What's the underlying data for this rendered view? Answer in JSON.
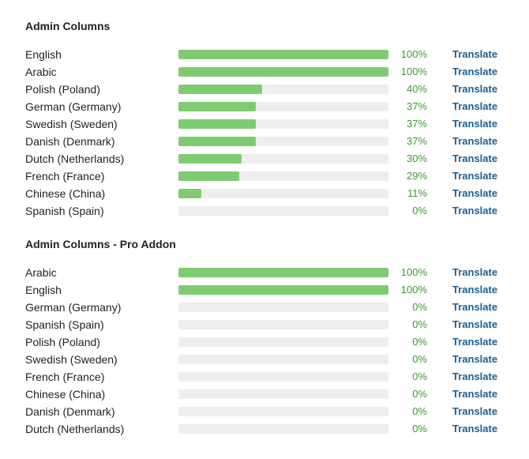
{
  "sections": [
    {
      "title": "Admin Columns",
      "rows": [
        {
          "language": "English",
          "percent": 100,
          "percent_label": "100%",
          "action": "Translate"
        },
        {
          "language": "Arabic",
          "percent": 100,
          "percent_label": "100%",
          "action": "Translate"
        },
        {
          "language": "Polish (Poland)",
          "percent": 40,
          "percent_label": "40%",
          "action": "Translate"
        },
        {
          "language": "German (Germany)",
          "percent": 37,
          "percent_label": "37%",
          "action": "Translate"
        },
        {
          "language": "Swedish (Sweden)",
          "percent": 37,
          "percent_label": "37%",
          "action": "Translate"
        },
        {
          "language": "Danish (Denmark)",
          "percent": 37,
          "percent_label": "37%",
          "action": "Translate"
        },
        {
          "language": "Dutch (Netherlands)",
          "percent": 30,
          "percent_label": "30%",
          "action": "Translate"
        },
        {
          "language": "French (France)",
          "percent": 29,
          "percent_label": "29%",
          "action": "Translate"
        },
        {
          "language": "Chinese (China)",
          "percent": 11,
          "percent_label": "11%",
          "action": "Translate"
        },
        {
          "language": "Spanish (Spain)",
          "percent": 0,
          "percent_label": "0%",
          "action": "Translate"
        }
      ]
    },
    {
      "title": "Admin Columns - Pro Addon",
      "rows": [
        {
          "language": "Arabic",
          "percent": 100,
          "percent_label": "100%",
          "action": "Translate"
        },
        {
          "language": "English",
          "percent": 100,
          "percent_label": "100%",
          "action": "Translate"
        },
        {
          "language": "German (Germany)",
          "percent": 0,
          "percent_label": "0%",
          "action": "Translate"
        },
        {
          "language": "Spanish (Spain)",
          "percent": 0,
          "percent_label": "0%",
          "action": "Translate"
        },
        {
          "language": "Polish (Poland)",
          "percent": 0,
          "percent_label": "0%",
          "action": "Translate"
        },
        {
          "language": "Swedish (Sweden)",
          "percent": 0,
          "percent_label": "0%",
          "action": "Translate"
        },
        {
          "language": "French (France)",
          "percent": 0,
          "percent_label": "0%",
          "action": "Translate"
        },
        {
          "language": "Chinese (China)",
          "percent": 0,
          "percent_label": "0%",
          "action": "Translate"
        },
        {
          "language": "Danish (Denmark)",
          "percent": 0,
          "percent_label": "0%",
          "action": "Translate"
        },
        {
          "language": "Dutch (Netherlands)",
          "percent": 0,
          "percent_label": "0%",
          "action": "Translate"
        }
      ]
    }
  ],
  "colors": {
    "bar_fill": "#80cb72",
    "bar_track": "#eeeeee",
    "percent_text": "#3c9a2e",
    "link_text": "#1d5d92"
  }
}
